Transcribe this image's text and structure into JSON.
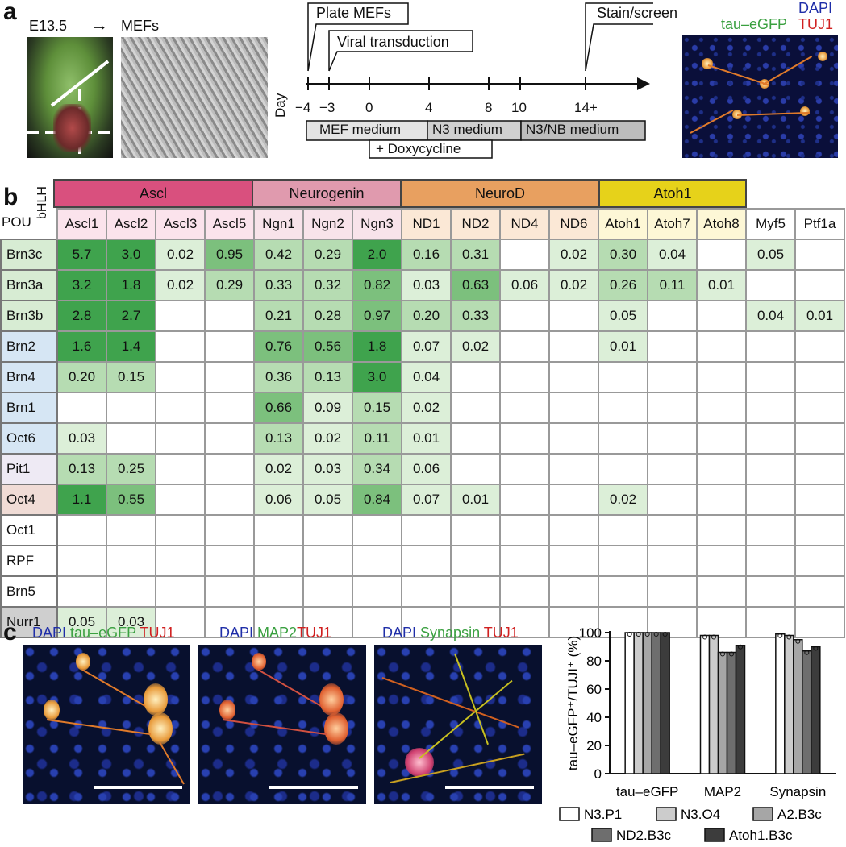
{
  "panel_a": {
    "letter": "a",
    "embryo_label": "E13.5",
    "arrow": "→",
    "mefs_label": "MEFs",
    "day_label": "Day",
    "events": [
      "Plate MEFs",
      "Viral transduction",
      "Stain/screen"
    ],
    "ticks": [
      "−4",
      "−3",
      "0",
      "4",
      "8",
      "10",
      "14+"
    ],
    "media": [
      "MEF medium",
      "N3 medium",
      "N3/NB medium",
      "+ Doxycycline"
    ],
    "stain_labels": {
      "dapi": "DAPI",
      "gfp": "tau–eGFP",
      "tuj1": "TUJ1"
    }
  },
  "panel_b": {
    "letter": "b",
    "corner_bhlh": "bHLH",
    "corner_pou": "POU",
    "families": [
      {
        "name": "Ascl",
        "color": "#d9507e"
      },
      {
        "name": "Neurogenin",
        "color": "#e09aae"
      },
      {
        "name": "NeuroD",
        "color": "#e8a060"
      },
      {
        "name": "Atoh1",
        "color": "#e6d21a"
      }
    ],
    "columns": [
      "Ascl1",
      "Ascl2",
      "Ascl3",
      "Ascl5",
      "Ngn1",
      "Ngn2",
      "Ngn3",
      "ND1",
      "ND2",
      "ND4",
      "ND6",
      "Atoh1",
      "Atoh7",
      "Atoh8",
      "Myf5",
      "Ptf1a"
    ],
    "rows": [
      {
        "name": "Brn3c",
        "values": [
          "5.7",
          "3.0",
          "0.02",
          "0.95",
          "0.42",
          "0.29",
          "2.0",
          "0.16",
          "0.31",
          "",
          "0.02",
          "0.30",
          "0.04",
          "",
          "0.05",
          ""
        ]
      },
      {
        "name": "Brn3a",
        "values": [
          "3.2",
          "1.8",
          "0.02",
          "0.29",
          "0.33",
          "0.32",
          "0.82",
          "0.03",
          "0.63",
          "0.06",
          "0.02",
          "0.26",
          "0.11",
          "0.01",
          "",
          ""
        ]
      },
      {
        "name": "Brn3b",
        "values": [
          "2.8",
          "2.7",
          "",
          "",
          "0.21",
          "0.28",
          "0.97",
          "0.20",
          "0.33",
          "",
          "",
          "0.05",
          "",
          "",
          "0.04",
          "0.01"
        ]
      },
      {
        "name": "Brn2",
        "values": [
          "1.6",
          "1.4",
          "",
          "",
          "0.76",
          "0.56",
          "1.8",
          "0.07",
          "0.02",
          "",
          "",
          "0.01",
          "",
          "",
          "",
          ""
        ]
      },
      {
        "name": "Brn4",
        "values": [
          "0.20",
          "0.15",
          "",
          "",
          "0.36",
          "0.13",
          "3.0",
          "0.04",
          "",
          "",
          "",
          "",
          "",
          "",
          "",
          ""
        ]
      },
      {
        "name": "Brn1",
        "values": [
          "",
          "",
          "",
          "",
          "0.66",
          "0.09",
          "0.15",
          "0.02",
          "",
          "",
          "",
          "",
          "",
          "",
          "",
          ""
        ]
      },
      {
        "name": "Oct6",
        "values": [
          "0.03",
          "",
          "",
          "",
          "0.13",
          "0.02",
          "0.11",
          "0.01",
          "",
          "",
          "",
          "",
          "",
          "",
          "",
          ""
        ]
      },
      {
        "name": "Pit1",
        "values": [
          "0.13",
          "0.25",
          "",
          "",
          "0.02",
          "0.03",
          "0.34",
          "0.06",
          "",
          "",
          "",
          "",
          "",
          "",
          "",
          ""
        ]
      },
      {
        "name": "Oct4",
        "values": [
          "1.1",
          "0.55",
          "",
          "",
          "0.06",
          "0.05",
          "0.84",
          "0.07",
          "0.01",
          "",
          "",
          "0.02",
          "",
          "",
          "",
          ""
        ]
      },
      {
        "name": "Oct1",
        "values": [
          "",
          "",
          "",
          "",
          "",
          "",
          "",
          "",
          "",
          "",
          "",
          "",
          "",
          "",
          "",
          ""
        ]
      },
      {
        "name": "RPF",
        "values": [
          "",
          "",
          "",
          "",
          "",
          "",
          "",
          "",
          "",
          "",
          "",
          "",
          "",
          "",
          "",
          ""
        ]
      },
      {
        "name": "Brn5",
        "values": [
          "",
          "",
          "",
          "",
          "",
          "",
          "",
          "",
          "",
          "",
          "",
          "",
          "",
          "",
          "",
          ""
        ]
      },
      {
        "name": "Nurr1",
        "values": [
          "0.05",
          "0.03",
          "",
          "",
          "",
          "",
          "",
          "",
          "",
          "",
          "",
          "",
          "",
          "",
          "",
          ""
        ]
      }
    ],
    "row_colors": {
      "Brn3c": "#d7ecd3",
      "Brn3a": "#d7ecd3",
      "Brn3b": "#d7ecd3",
      "Brn2": "#d6e6f4",
      "Brn4": "#d6e6f4",
      "Brn1": "#d6e6f4",
      "Oct6": "#d6e6f4",
      "Pit1": "#eeeaf4",
      "Oct4": "#f0dcd6",
      "Oct1": "#ffffff",
      "RPF": "#ffffff",
      "Brn5": "#ffffff",
      "Nurr1": "#cfcfcf"
    }
  },
  "panel_c": {
    "letter": "c",
    "images": [
      {
        "dapi": "DAPI",
        "marker": "tau–eGFP",
        "tuj1": "TUJ1"
      },
      {
        "dapi": "DAPI",
        "marker": "MAP2",
        "tuj1": "TUJ1"
      },
      {
        "dapi": "DAPI",
        "marker": "Synapsin",
        "tuj1": "TUJ1"
      }
    ]
  },
  "chart_data": {
    "type": "bar",
    "ylabel": "tau–eGFP⁺/TUJI⁺ (%)",
    "ylim": [
      0,
      100
    ],
    "yticks": [
      "0",
      "20",
      "40",
      "60",
      "80",
      "100"
    ],
    "categories": [
      "tau–eGFP",
      "MAP2",
      "Synapsin"
    ],
    "series": [
      {
        "name": "N3.P1",
        "color": "#ffffff",
        "values": [
          100,
          98,
          99
        ]
      },
      {
        "name": "N3.O4",
        "color": "#cccccc",
        "values": [
          100,
          98,
          98
        ]
      },
      {
        "name": "A2.B3c",
        "color": "#a6a6a6",
        "values": [
          100,
          86,
          95
        ]
      },
      {
        "name": "ND2.B3c",
        "color": "#6e6e6e",
        "values": [
          100,
          86,
          87
        ]
      },
      {
        "name": "Atoh1.B3c",
        "color": "#3c3c3c",
        "values": [
          100,
          91,
          90
        ]
      }
    ],
    "grid": false,
    "legend_position": "bottom"
  }
}
